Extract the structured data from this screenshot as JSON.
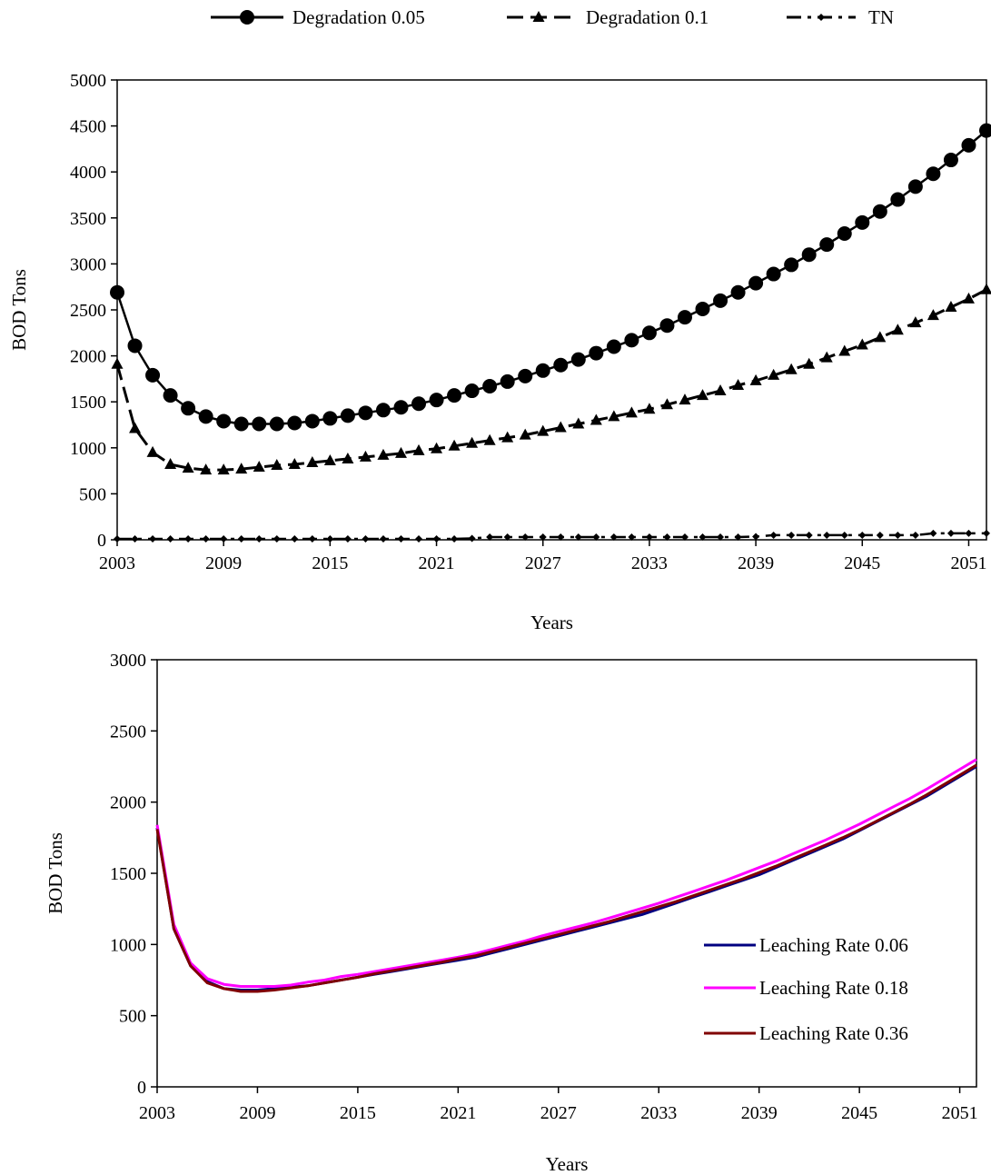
{
  "chart_data": [
    {
      "type": "line",
      "title": "",
      "xlabel": "Years",
      "ylabel": "BOD Tons",
      "xlim": [
        2003,
        2052
      ],
      "ylim": [
        0,
        5000
      ],
      "yticks": [
        0,
        500,
        1000,
        1500,
        2000,
        2500,
        3000,
        3500,
        4000,
        4500,
        5000
      ],
      "xticks": [
        2003,
        2009,
        2015,
        2021,
        2027,
        2033,
        2039,
        2045,
        2051
      ],
      "grid": false,
      "legend": "top",
      "x": [
        2003,
        2004,
        2005,
        2006,
        2007,
        2008,
        2009,
        2010,
        2011,
        2012,
        2013,
        2014,
        2015,
        2016,
        2017,
        2018,
        2019,
        2020,
        2021,
        2022,
        2023,
        2024,
        2025,
        2026,
        2027,
        2028,
        2029,
        2030,
        2031,
        2032,
        2033,
        2034,
        2035,
        2036,
        2037,
        2038,
        2039,
        2040,
        2041,
        2042,
        2043,
        2044,
        2045,
        2046,
        2047,
        2048,
        2049,
        2050,
        2051,
        2052
      ],
      "series": [
        {
          "name": "Degradation 0.05",
          "style": "solid-circle",
          "values": [
            2690,
            2110,
            1790,
            1570,
            1430,
            1340,
            1290,
            1260,
            1260,
            1260,
            1270,
            1290,
            1320,
            1350,
            1380,
            1410,
            1440,
            1480,
            1520,
            1570,
            1620,
            1670,
            1720,
            1780,
            1840,
            1900,
            1960,
            2030,
            2100,
            2170,
            2250,
            2330,
            2420,
            2510,
            2600,
            2690,
            2790,
            2890,
            2990,
            3100,
            3210,
            3330,
            3450,
            3570,
            3700,
            3840,
            3980,
            4130,
            4290,
            4450
          ]
        },
        {
          "name": "Degradation 0.1",
          "style": "dashed-triangle",
          "values": [
            1910,
            1210,
            950,
            820,
            780,
            760,
            760,
            770,
            790,
            810,
            820,
            840,
            860,
            880,
            900,
            920,
            940,
            970,
            990,
            1020,
            1050,
            1080,
            1110,
            1140,
            1180,
            1220,
            1260,
            1300,
            1340,
            1380,
            1420,
            1470,
            1520,
            1570,
            1620,
            1680,
            1730,
            1790,
            1850,
            1910,
            1980,
            2050,
            2120,
            2200,
            2280,
            2360,
            2440,
            2530,
            2620,
            2720
          ]
        },
        {
          "name": "TN",
          "style": "dashdot-diamond",
          "values": [
            10,
            10,
            10,
            10,
            10,
            10,
            10,
            10,
            10,
            10,
            10,
            10,
            10,
            10,
            10,
            10,
            10,
            10,
            10,
            10,
            15,
            30,
            30,
            30,
            30,
            30,
            30,
            30,
            30,
            30,
            30,
            30,
            30,
            30,
            30,
            30,
            35,
            50,
            50,
            50,
            50,
            50,
            50,
            50,
            50,
            50,
            70,
            70,
            70,
            70
          ]
        }
      ]
    },
    {
      "type": "line",
      "title": "",
      "xlabel": "Years",
      "ylabel": "BOD Tons",
      "xlim": [
        2003,
        2052
      ],
      "ylim": [
        0,
        3000
      ],
      "yticks": [
        0,
        500,
        1000,
        1500,
        2000,
        2500,
        3000
      ],
      "xticks": [
        2003,
        2009,
        2015,
        2021,
        2027,
        2033,
        2039,
        2045,
        2051
      ],
      "grid": false,
      "legend": "bottom-right",
      "x": [
        2003,
        2004,
        2005,
        2006,
        2007,
        2008,
        2009,
        2010,
        2011,
        2012,
        2013,
        2014,
        2015,
        2016,
        2017,
        2018,
        2019,
        2020,
        2021,
        2022,
        2023,
        2024,
        2025,
        2026,
        2027,
        2028,
        2029,
        2030,
        2031,
        2032,
        2033,
        2034,
        2035,
        2036,
        2037,
        2038,
        2039,
        2040,
        2041,
        2042,
        2043,
        2044,
        2045,
        2046,
        2047,
        2048,
        2049,
        2050,
        2051,
        2052
      ],
      "series": [
        {
          "name": "Leaching Rate 0.06",
          "color": "#000080",
          "values": [
            1820,
            1110,
            850,
            740,
            690,
            680,
            680,
            690,
            700,
            710,
            730,
            750,
            770,
            790,
            810,
            830,
            850,
            870,
            890,
            910,
            940,
            970,
            1000,
            1030,
            1060,
            1090,
            1120,
            1150,
            1180,
            1210,
            1250,
            1290,
            1330,
            1370,
            1410,
            1450,
            1490,
            1540,
            1590,
            1640,
            1690,
            1740,
            1800,
            1860,
            1920,
            1980,
            2040,
            2110,
            2180,
            2250
          ]
        },
        {
          "name": "Leaching Rate 0.18",
          "color": "#FF00FF",
          "values": [
            1840,
            1140,
            870,
            760,
            720,
            705,
            705,
            705,
            715,
            735,
            750,
            775,
            790,
            810,
            830,
            850,
            870,
            890,
            910,
            935,
            965,
            995,
            1025,
            1060,
            1090,
            1120,
            1150,
            1185,
            1220,
            1255,
            1290,
            1330,
            1370,
            1410,
            1450,
            1495,
            1540,
            1585,
            1635,
            1685,
            1735,
            1790,
            1845,
            1905,
            1965,
            2025,
            2090,
            2160,
            2230,
            2300
          ]
        },
        {
          "name": "Leaching Rate 0.36",
          "color": "#800000",
          "values": [
            1810,
            1110,
            850,
            730,
            690,
            670,
            670,
            680,
            695,
            710,
            730,
            750,
            770,
            795,
            815,
            835,
            855,
            875,
            900,
            920,
            950,
            980,
            1010,
            1040,
            1070,
            1100,
            1130,
            1160,
            1195,
            1230,
            1265,
            1300,
            1340,
            1380,
            1420,
            1460,
            1505,
            1550,
            1600,
            1650,
            1700,
            1750,
            1805,
            1865,
            1925,
            1985,
            2050,
            2120,
            2190,
            2260
          ]
        }
      ]
    }
  ]
}
